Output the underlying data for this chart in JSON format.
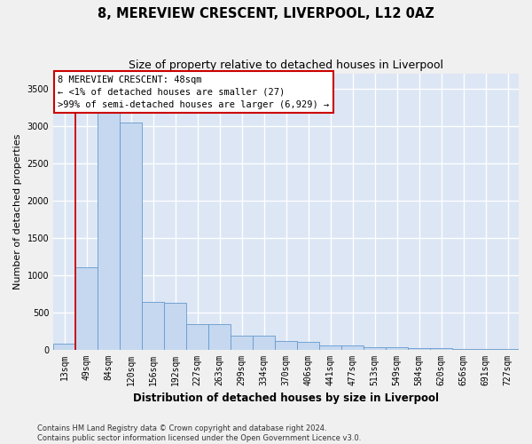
{
  "title_line1": "8, MEREVIEW CRESCENT, LIVERPOOL, L12 0AZ",
  "title_line2": "Size of property relative to detached houses in Liverpool",
  "xlabel": "Distribution of detached houses by size in Liverpool",
  "ylabel": "Number of detached properties",
  "footnote_line1": "Contains HM Land Registry data © Crown copyright and database right 2024.",
  "footnote_line2": "Contains public sector information licensed under the Open Government Licence v3.0.",
  "bar_labels": [
    "13sqm",
    "49sqm",
    "84sqm",
    "120sqm",
    "156sqm",
    "192sqm",
    "227sqm",
    "263sqm",
    "299sqm",
    "334sqm",
    "370sqm",
    "406sqm",
    "441sqm",
    "477sqm",
    "513sqm",
    "549sqm",
    "584sqm",
    "620sqm",
    "656sqm",
    "691sqm",
    "727sqm"
  ],
  "bar_values": [
    75,
    1100,
    3400,
    3050,
    640,
    625,
    340,
    335,
    190,
    185,
    110,
    105,
    55,
    50,
    35,
    30,
    18,
    15,
    8,
    6,
    3
  ],
  "bar_color": "#c5d8f0",
  "bar_edge_color": "#6699cc",
  "red_color": "#cc0000",
  "annotation_text_line1": "8 MEREVIEW CRESCENT: 48sqm",
  "annotation_text_line2": "← <1% of detached houses are smaller (27)",
  "annotation_text_line3": ">99% of semi-detached houses are larger (6,929) →",
  "ylim": [
    0,
    3700
  ],
  "yticks": [
    0,
    500,
    1000,
    1500,
    2000,
    2500,
    3000,
    3500
  ],
  "plot_bg_color": "#dce6f5",
  "fig_bg_color": "#f0f0f0",
  "grid_color": "#ffffff",
  "title_fontsize": 10.5,
  "subtitle_fontsize": 9,
  "ylabel_fontsize": 8,
  "xlabel_fontsize": 8.5,
  "tick_fontsize": 7,
  "annotation_fontsize": 7.5,
  "footnote_fontsize": 6
}
